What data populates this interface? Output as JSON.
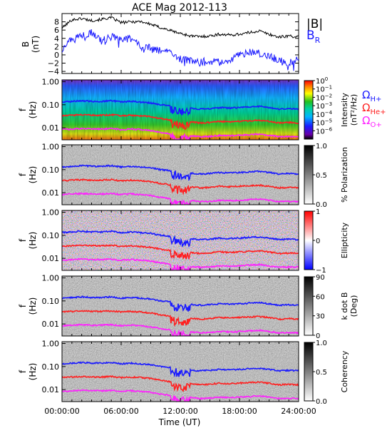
{
  "title": "ACE Mag 2012-113",
  "x_axis": {
    "label": "Time (UT)",
    "range_hours": [
      0,
      24
    ],
    "ticks": [
      {
        "hour": 0,
        "label": "00:00:00"
      },
      {
        "hour": 6,
        "label": "06:00:00"
      },
      {
        "hour": 12,
        "label": "12:00:00"
      },
      {
        "hour": 18,
        "label": "18:00:00"
      },
      {
        "hour": 24,
        "label": "24:00:00"
      }
    ]
  },
  "freq_ticks": [
    {
      "value": 1.0,
      "label": "1.00"
    },
    {
      "value": 0.1,
      "label": "0.10"
    },
    {
      "value": 0.01,
      "label": "0.01"
    }
  ],
  "panel1": {
    "ylabel_top": "B",
    "ylabel_bottom": "(nT)",
    "legend_b": "|B|",
    "legend_br": "B",
    "legend_br_sub": "R",
    "ylim": [
      -4.5,
      10
    ],
    "ticks": [
      {
        "value": 8,
        "label": "8"
      },
      {
        "value": 6,
        "label": "6"
      },
      {
        "value": 4,
        "label": "4"
      },
      {
        "value": 2,
        "label": "2"
      },
      {
        "value": 0,
        "label": "0"
      },
      {
        "value": -2,
        "label": "−2"
      },
      {
        "value": -4,
        "label": "−4"
      }
    ]
  },
  "gyro_legend": [
    {
      "symbol": "Ω",
      "sub": "H+",
      "color": "#1a1aff"
    },
    {
      "symbol": "Ω",
      "sub": "He+",
      "color": "#ff2020"
    },
    {
      "symbol": "Ω",
      "sub": "O+",
      "color": "#ff20ff"
    }
  ],
  "panels": [
    {
      "key": "intensity",
      "ylabel_top": "f",
      "ylabel_bottom": "(Hz)",
      "colorbar_label": "Intensity",
      "colorbar_units": "(nT²/Hz)",
      "colormap": "rainbow",
      "cb_ticks": [
        {
          "frac": 1.0,
          "base": "10",
          "exp": "0"
        },
        {
          "frac": 0.857,
          "base": "10",
          "exp": "−1"
        },
        {
          "frac": 0.714,
          "base": "10",
          "exp": "−2"
        },
        {
          "frac": 0.571,
          "base": "10",
          "exp": "−3"
        },
        {
          "frac": 0.428,
          "base": "10",
          "exp": "−4"
        },
        {
          "frac": 0.285,
          "base": "10",
          "exp": "−5"
        },
        {
          "frac": 0.142,
          "base": "10",
          "exp": "−6"
        }
      ]
    },
    {
      "key": "polarization",
      "ylabel_top": "f",
      "ylabel_bottom": "(Hz)",
      "colorbar_label": "% Polarization",
      "colorbar_units": "",
      "colormap": "gray",
      "cb_ticks": [
        {
          "frac": 1.0,
          "label": "1.0"
        },
        {
          "frac": 0.5,
          "label": "0.5"
        },
        {
          "frac": 0.0,
          "label": "0.0"
        }
      ]
    },
    {
      "key": "ellipticity",
      "ylabel_top": "f",
      "ylabel_bottom": "(Hz)",
      "colorbar_label": "Ellipticity",
      "colorbar_units": "",
      "colormap": "bwr",
      "cb_ticks": [
        {
          "frac": 1.0,
          "label": "1"
        },
        {
          "frac": 0.5,
          "label": "0"
        },
        {
          "frac": 0.0,
          "label": "−1"
        }
      ]
    },
    {
      "key": "kdotb",
      "ylabel_top": "f",
      "ylabel_bottom": "(Hz)",
      "colorbar_label": "k dot B",
      "colorbar_units": "(Deg)",
      "colormap": "gray",
      "cb_ticks": [
        {
          "frac": 1.0,
          "label": "90"
        },
        {
          "frac": 0.667,
          "label": "60"
        },
        {
          "frac": 0.333,
          "label": "30"
        },
        {
          "frac": 0.0,
          "label": "0"
        }
      ]
    },
    {
      "key": "coherency",
      "ylabel_top": "f",
      "ylabel_bottom": "(Hz)",
      "colorbar_label": "Coherency",
      "colorbar_units": "",
      "colormap": "gray",
      "cb_ticks": [
        {
          "frac": 1.0,
          "label": "1.0"
        },
        {
          "frac": 0.5,
          "label": "0.5"
        },
        {
          "frac": 0.0,
          "label": "0.0"
        }
      ]
    }
  ],
  "colors": {
    "b_total": "#000000",
    "b_r": "#1a1aff",
    "h_plus": "#1a1aff",
    "he_plus": "#ff2020",
    "o_plus": "#ff20ff"
  },
  "chart_data": [
    {
      "type": "line",
      "xlabel": "Time (UT)",
      "ylabel": "B (nT)",
      "x": [
        0,
        1,
        2,
        3,
        4,
        5,
        6,
        7,
        8,
        9,
        10,
        11,
        12,
        13,
        14,
        15,
        16,
        17,
        18,
        19,
        20,
        21,
        22,
        23,
        24
      ],
      "xlim": [
        0,
        24
      ],
      "ylim": [
        -4.5,
        10
      ],
      "series": [
        {
          "name": "|B|",
          "values": [
            6.5,
            8.5,
            8.8,
            8.3,
            8.6,
            9.0,
            7.8,
            8.0,
            8.1,
            7.4,
            6.6,
            5.9,
            5.2,
            4.6,
            4.4,
            4.6,
            5.0,
            4.8,
            5.0,
            5.4,
            5.8,
            5.0,
            4.3,
            4.6,
            4.3
          ]
        },
        {
          "name": "B_R",
          "values": [
            1.0,
            4.0,
            4.6,
            5.5,
            3.4,
            4.5,
            3.8,
            4.0,
            2.0,
            1.6,
            1.0,
            0.4,
            -1.0,
            -1.4,
            -1.6,
            -1.6,
            -1.8,
            -1.3,
            0.0,
            0.6,
            0.4,
            -0.4,
            -1.2,
            -1.8,
            -1.0
          ]
        }
      ]
    },
    {
      "type": "heatmap",
      "description_series": "gyrofrequency lines overlaid on each spectrogram",
      "yscale": "log",
      "ylim": [
        0.003,
        1.2
      ],
      "x": [
        0,
        1,
        2,
        3,
        4,
        5,
        6,
        7,
        8,
        9,
        10,
        11,
        12,
        13,
        14,
        15,
        16,
        17,
        18,
        19,
        20,
        21,
        22,
        23,
        24
      ],
      "series": [
        {
          "name": "Ω H+",
          "values": [
            0.13,
            0.14,
            0.15,
            0.14,
            0.14,
            0.15,
            0.13,
            0.14,
            0.13,
            0.12,
            0.1,
            0.09,
            0.08,
            0.07,
            0.065,
            0.068,
            0.075,
            0.072,
            0.075,
            0.08,
            0.085,
            0.075,
            0.065,
            0.068,
            0.065
          ]
        },
        {
          "name": "Ω He+",
          "values": [
            0.033,
            0.035,
            0.037,
            0.035,
            0.035,
            0.037,
            0.033,
            0.035,
            0.033,
            0.03,
            0.025,
            0.022,
            0.02,
            0.018,
            0.016,
            0.017,
            0.019,
            0.018,
            0.019,
            0.02,
            0.021,
            0.019,
            0.016,
            0.017,
            0.016
          ]
        },
        {
          "name": "Ω O+",
          "values": [
            0.0083,
            0.0088,
            0.0092,
            0.0088,
            0.0088,
            0.0092,
            0.0083,
            0.0088,
            0.0083,
            0.0075,
            0.0063,
            0.0055,
            0.005,
            0.0045,
            0.0041,
            0.0042,
            0.0047,
            0.0045,
            0.0047,
            0.005,
            0.0053,
            0.0047,
            0.0041,
            0.0042,
            0.0041
          ]
        }
      ]
    }
  ]
}
